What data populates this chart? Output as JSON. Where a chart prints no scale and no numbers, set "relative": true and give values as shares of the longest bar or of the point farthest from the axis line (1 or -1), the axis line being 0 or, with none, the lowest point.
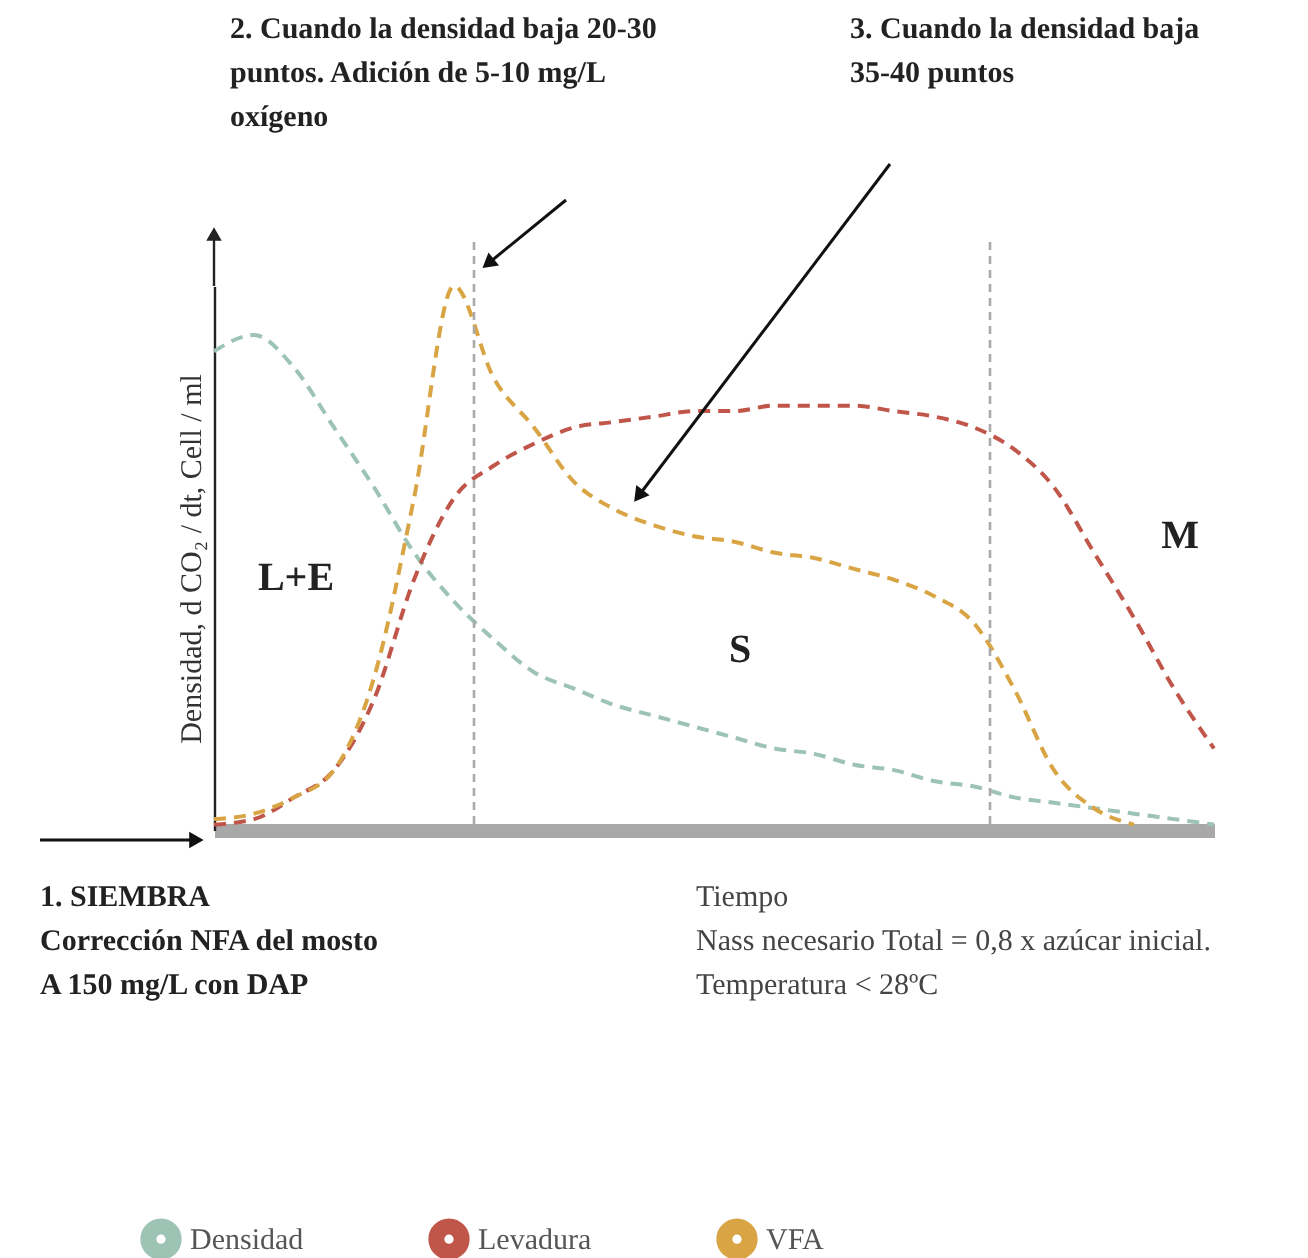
{
  "chart_data": {
    "type": "line",
    "relative": true,
    "xlabel": "Tiempo",
    "ylabel": "Densidad, d CO₂ / dt, Cell / ml",
    "categories": [
      null,
      null,
      null,
      null,
      null,
      null,
      null,
      null,
      null,
      null,
      null,
      null,
      null,
      null,
      null,
      null,
      null,
      null,
      null,
      null,
      null,
      null,
      null,
      null,
      null,
      null
    ],
    "series": [
      {
        "name": "Densidad",
        "color": "#9dc3b5",
        "values": [
          0.88,
          0.91,
          0.85,
          0.74,
          0.63,
          0.51,
          0.42,
          0.35,
          0.29,
          0.26,
          0.23,
          0.21,
          0.19,
          0.17,
          0.15,
          0.14,
          0.12,
          0.11,
          0.09,
          0.08,
          0.06,
          0.05,
          0.04,
          0.03,
          0.02,
          0.01
        ]
      },
      {
        "name": "Levadura",
        "color": "#c0564a",
        "values": [
          0.01,
          0.02,
          0.06,
          0.11,
          0.24,
          0.46,
          0.61,
          0.67,
          0.71,
          0.74,
          0.75,
          0.76,
          0.77,
          0.77,
          0.78,
          0.78,
          0.78,
          0.77,
          0.76,
          0.74,
          0.7,
          0.63,
          0.51,
          0.39,
          0.26,
          0.15
        ]
      },
      {
        "name": "VFA",
        "color": "#d9a544",
        "values": [
          0.02,
          0.03,
          0.06,
          0.11,
          0.28,
          0.61,
          1,
          0.83,
          0.74,
          0.64,
          0.59,
          0.56,
          0.54,
          0.53,
          0.51,
          0.5,
          0.48,
          0.46,
          0.43,
          0.38,
          0.26,
          0.11,
          0.04,
          0.01,
          null,
          null
        ]
      }
    ],
    "annotations": [
      "2. Cuando la densidad baja 20-30\npuntos. Adición de 5-10 mg/L\noxígeno",
      "3. Cuando la densidad baja\n35-40 puntos",
      "L+E",
      "S",
      "M",
      "1. SIEMBRA\nCorrección NFA del mosto\nA 150 mg/L  con DAP",
      "Nass necesario Total = 0,8 x azúcar inicial.",
      "Temperatura < 28ºC"
    ],
    "line_style": "dashed",
    "marker": "none",
    "grid": false,
    "legend": "bottom",
    "tick_labels": false
  }
}
